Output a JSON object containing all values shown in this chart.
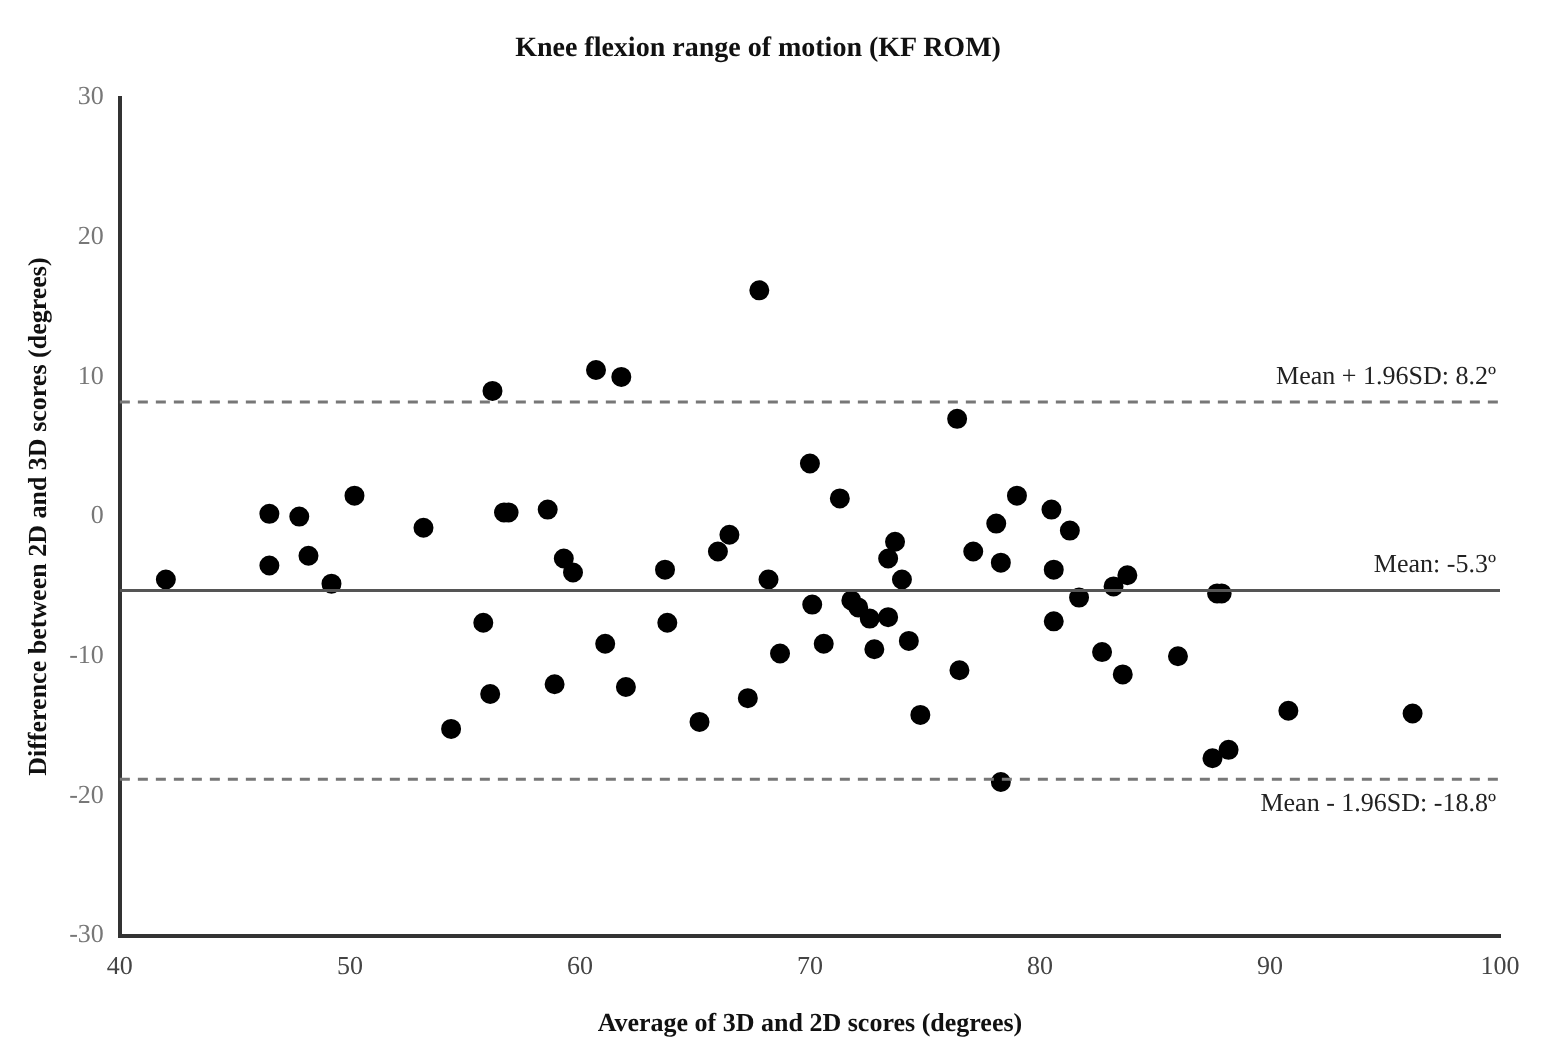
{
  "chart_data": {
    "type": "scatter",
    "title": "Knee flexion range of motion (KF ROM)",
    "xlabel": "Average of 3D and 2D scores (degrees)",
    "ylabel": "Difference between 2D and 3D scores (degrees)",
    "series": [
      {
        "color": "#000000",
        "x": [
          42,
          46.5,
          46.5,
          47.8,
          48.2,
          49.2,
          50.2,
          53.2,
          54.4,
          55.8,
          56.2,
          56.1,
          56.7,
          56.9,
          58.6,
          58.9,
          59.3,
          59.7,
          60.7,
          61.1,
          61.8,
          62,
          63.7,
          63.8,
          65.2,
          66,
          66.5,
          67.3,
          67.8,
          68.2,
          68.7,
          70,
          70.1,
          70.6,
          71.3,
          71.8,
          72.1,
          72.6,
          72.8,
          73.4,
          73.4,
          73.7,
          74,
          74.3,
          74.8,
          76.4,
          76.5,
          77.1,
          78.1,
          78.3,
          78.3,
          79,
          80.5,
          80.6,
          80.6,
          81.3,
          81.7,
          82.7,
          83.2,
          83.6,
          83.8,
          86,
          87.5,
          87.7,
          87.9,
          88.2,
          90.8,
          96.2
        ],
        "values": [
          -4.5,
          0.2,
          -3.5,
          0,
          -2.8,
          -4.8,
          1.5,
          -0.8,
          -15.2,
          -7.6,
          9,
          -12.7,
          0.3,
          0.3,
          0.5,
          -12,
          -3,
          -4,
          10.5,
          -9.1,
          10,
          -12.2,
          -3.8,
          -7.6,
          -14.7,
          -2.5,
          -1.3,
          -13,
          16.2,
          -4.5,
          -9.8,
          3.8,
          -6.3,
          -9.1,
          1.3,
          -6,
          -6.5,
          -7.3,
          -9.5,
          -7.2,
          -3,
          -1.8,
          -4.5,
          -8.9,
          -14.2,
          7,
          -11,
          -2.5,
          -0.5,
          -3.3,
          -19,
          1.5,
          0.5,
          -3.8,
          -7.5,
          -1,
          -5.8,
          -9.7,
          -5,
          -11.3,
          -4.2,
          -10,
          -17.3,
          -5.5,
          -5.5,
          -16.7,
          -13.9,
          -14.1
        ]
      }
    ],
    "xlim": [
      40,
      100
    ],
    "xticks": [
      40,
      50,
      60,
      70,
      80,
      90,
      100
    ],
    "ylim": [
      -30,
      30
    ],
    "yticks": [
      -30,
      -20,
      -10,
      0,
      10,
      20,
      30
    ],
    "grid": false,
    "legend": false,
    "marker": "circle",
    "ref_lines": [
      {
        "axis": "y",
        "value": 8.2,
        "label": "Mean + 1.96SD: 8.2º",
        "line_style": "dashed",
        "color": "#777777"
      },
      {
        "axis": "y",
        "value": -5.3,
        "label": "Mean: -5.3º",
        "line_style": "solid",
        "color": "#555555"
      },
      {
        "axis": "y",
        "value": -18.8,
        "label": "Mean - 1.96SD: -18.8º",
        "line_style": "dashed",
        "color": "#777777"
      }
    ]
  }
}
